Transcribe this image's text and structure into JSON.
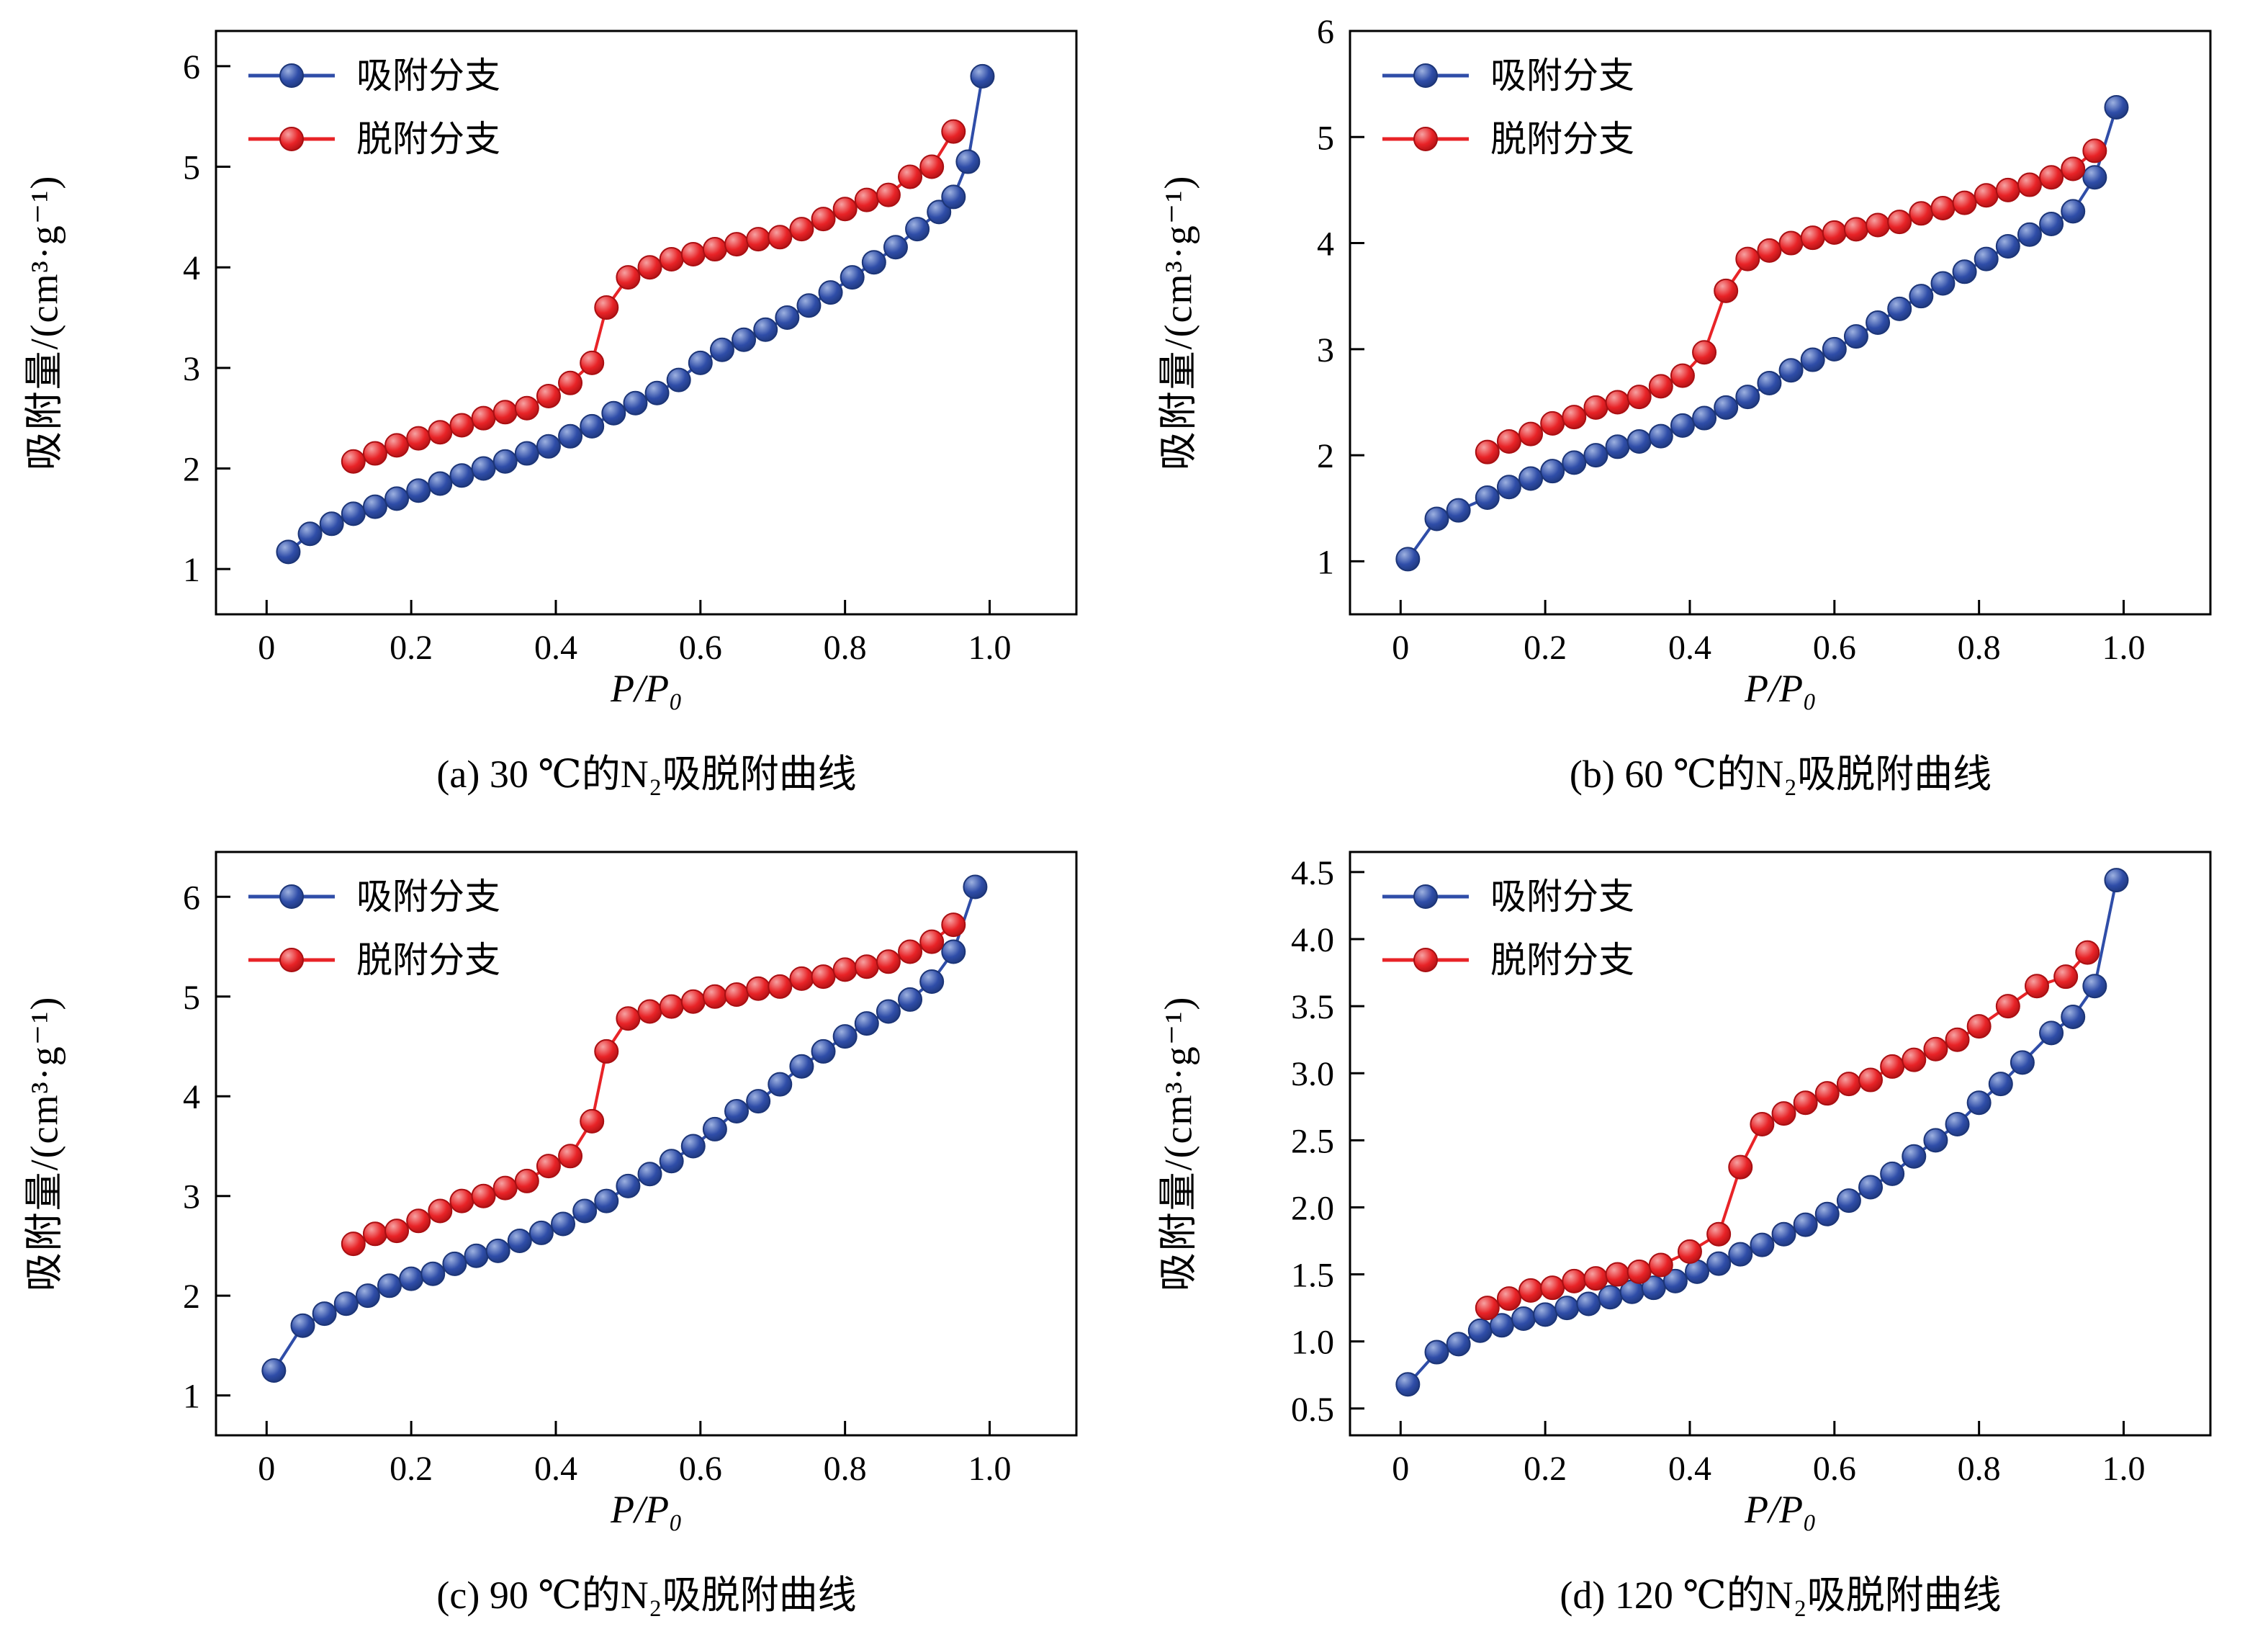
{
  "figure": {
    "accent_blue": "#2f4da8",
    "accent_red": "#e82327"
  },
  "chart_data": [
    {
      "type": "scatter",
      "title": "(a) 30 ℃的N₂吸脱附曲线",
      "xlabel": "P/P₀",
      "ylabel": "吸附量/(cm³·g⁻¹)",
      "xlim": [
        -0.07,
        1.12
      ],
      "ylim": [
        0.55,
        6.35
      ],
      "xticks": [
        0,
        0.2,
        0.4,
        0.6,
        0.8,
        1.0
      ],
      "xtick_labels": [
        "0",
        "0.2",
        "0.4",
        "0.6",
        "0.8",
        "1.0"
      ],
      "yticks": [
        1,
        2,
        3,
        4,
        5,
        6
      ],
      "ytick_labels": [
        "1",
        "2",
        "3",
        "4",
        "5",
        "6"
      ],
      "legend_position": "top-left",
      "grid": false,
      "series": [
        {
          "name": "吸附分支",
          "color": "#2f4da8",
          "color_light": "#9db1e0",
          "color_dark": "#1c3577",
          "x": [
            0.03,
            0.06,
            0.09,
            0.12,
            0.15,
            0.18,
            0.21,
            0.24,
            0.27,
            0.3,
            0.33,
            0.36,
            0.39,
            0.42,
            0.45,
            0.48,
            0.51,
            0.54,
            0.57,
            0.6,
            0.63,
            0.66,
            0.69,
            0.72,
            0.75,
            0.78,
            0.81,
            0.84,
            0.87,
            0.9,
            0.93,
            0.95,
            0.97,
            0.99
          ],
          "y": [
            1.17,
            1.35,
            1.45,
            1.55,
            1.62,
            1.7,
            1.78,
            1.85,
            1.93,
            2.0,
            2.07,
            2.15,
            2.22,
            2.32,
            2.42,
            2.55,
            2.65,
            2.75,
            2.88,
            3.05,
            3.18,
            3.28,
            3.38,
            3.5,
            3.62,
            3.75,
            3.9,
            4.05,
            4.2,
            4.38,
            4.55,
            4.7,
            5.05,
            5.9
          ]
        },
        {
          "name": "脱附分支",
          "color": "#e82327",
          "color_light": "#f6a2a2",
          "color_dark": "#a90f12",
          "x": [
            0.12,
            0.15,
            0.18,
            0.21,
            0.24,
            0.27,
            0.3,
            0.33,
            0.36,
            0.39,
            0.42,
            0.45,
            0.47,
            0.5,
            0.53,
            0.56,
            0.59,
            0.62,
            0.65,
            0.68,
            0.71,
            0.74,
            0.77,
            0.8,
            0.83,
            0.86,
            0.89,
            0.92,
            0.95
          ],
          "y": [
            2.07,
            2.15,
            2.23,
            2.3,
            2.36,
            2.43,
            2.5,
            2.56,
            2.6,
            2.72,
            2.85,
            3.05,
            3.6,
            3.9,
            4.0,
            4.08,
            4.13,
            4.18,
            4.23,
            4.28,
            4.3,
            4.38,
            4.48,
            4.58,
            4.67,
            4.72,
            4.9,
            5.0,
            5.35
          ]
        }
      ]
    },
    {
      "type": "scatter",
      "title": "(b) 60 ℃的N₂吸脱附曲线",
      "xlabel": "P/P₀",
      "ylabel": "吸附量/(cm³·g⁻¹)",
      "xlim": [
        -0.07,
        1.12
      ],
      "ylim": [
        0.5,
        6.0
      ],
      "xticks": [
        0,
        0.2,
        0.4,
        0.6,
        0.8,
        1.0
      ],
      "xtick_labels": [
        "0",
        "0.2",
        "0.4",
        "0.6",
        "0.8",
        "1.0"
      ],
      "yticks": [
        1,
        2,
        3,
        4,
        5,
        6
      ],
      "ytick_labels": [
        "1",
        "2",
        "3",
        "4",
        "5",
        "6"
      ],
      "legend_position": "top-left",
      "grid": false,
      "series": [
        {
          "name": "吸附分支",
          "color": "#2f4da8",
          "color_light": "#9db1e0",
          "color_dark": "#1c3577",
          "x": [
            0.01,
            0.05,
            0.08,
            0.12,
            0.15,
            0.18,
            0.21,
            0.24,
            0.27,
            0.3,
            0.33,
            0.36,
            0.39,
            0.42,
            0.45,
            0.48,
            0.51,
            0.54,
            0.57,
            0.6,
            0.63,
            0.66,
            0.69,
            0.72,
            0.75,
            0.78,
            0.81,
            0.84,
            0.87,
            0.9,
            0.93,
            0.96,
            0.99
          ],
          "y": [
            1.02,
            1.4,
            1.48,
            1.6,
            1.7,
            1.78,
            1.85,
            1.93,
            2.0,
            2.08,
            2.13,
            2.18,
            2.28,
            2.35,
            2.45,
            2.55,
            2.68,
            2.8,
            2.9,
            3.0,
            3.12,
            3.25,
            3.38,
            3.5,
            3.62,
            3.73,
            3.85,
            3.97,
            4.08,
            4.18,
            4.3,
            4.62,
            5.28
          ]
        },
        {
          "name": "脱附分支",
          "color": "#e82327",
          "color_light": "#f6a2a2",
          "color_dark": "#a90f12",
          "x": [
            0.12,
            0.15,
            0.18,
            0.21,
            0.24,
            0.27,
            0.3,
            0.33,
            0.36,
            0.39,
            0.42,
            0.45,
            0.48,
            0.51,
            0.54,
            0.57,
            0.6,
            0.63,
            0.66,
            0.69,
            0.72,
            0.75,
            0.78,
            0.81,
            0.84,
            0.87,
            0.9,
            0.93,
            0.96
          ],
          "y": [
            2.03,
            2.13,
            2.2,
            2.3,
            2.36,
            2.45,
            2.5,
            2.55,
            2.65,
            2.75,
            2.97,
            3.55,
            3.85,
            3.93,
            4.0,
            4.05,
            4.1,
            4.13,
            4.17,
            4.2,
            4.28,
            4.33,
            4.38,
            4.45,
            4.5,
            4.55,
            4.62,
            4.7,
            4.87
          ]
        }
      ]
    },
    {
      "type": "scatter",
      "title": "(c) 90 ℃的N₂吸脱附曲线",
      "xlabel": "P/P₀",
      "ylabel": "吸附量/(cm³·g⁻¹)",
      "xlim": [
        -0.07,
        1.12
      ],
      "ylim": [
        0.6,
        6.45
      ],
      "xticks": [
        0,
        0.2,
        0.4,
        0.6,
        0.8,
        1.0
      ],
      "xtick_labels": [
        "0",
        "0.2",
        "0.4",
        "0.6",
        "0.8",
        "1.0"
      ],
      "yticks": [
        1,
        2,
        3,
        4,
        5,
        6
      ],
      "ytick_labels": [
        "1",
        "2",
        "3",
        "4",
        "5",
        "6"
      ],
      "legend_position": "top-left",
      "grid": false,
      "series": [
        {
          "name": "吸附分支",
          "color": "#2f4da8",
          "color_light": "#9db1e0",
          "color_dark": "#1c3577",
          "x": [
            0.01,
            0.05,
            0.08,
            0.11,
            0.14,
            0.17,
            0.2,
            0.23,
            0.26,
            0.29,
            0.32,
            0.35,
            0.38,
            0.41,
            0.44,
            0.47,
            0.5,
            0.53,
            0.56,
            0.59,
            0.62,
            0.65,
            0.68,
            0.71,
            0.74,
            0.77,
            0.8,
            0.83,
            0.86,
            0.89,
            0.92,
            0.95,
            0.98
          ],
          "y": [
            1.25,
            1.7,
            1.82,
            1.92,
            2.0,
            2.1,
            2.17,
            2.22,
            2.32,
            2.4,
            2.45,
            2.55,
            2.63,
            2.72,
            2.85,
            2.95,
            3.1,
            3.22,
            3.35,
            3.5,
            3.67,
            3.85,
            3.95,
            4.12,
            4.3,
            4.45,
            4.6,
            4.73,
            4.85,
            4.97,
            5.15,
            5.45,
            6.1
          ]
        },
        {
          "name": "脱附分支",
          "color": "#e82327",
          "color_light": "#f6a2a2",
          "color_dark": "#a90f12",
          "x": [
            0.12,
            0.15,
            0.18,
            0.21,
            0.24,
            0.27,
            0.3,
            0.33,
            0.36,
            0.39,
            0.42,
            0.45,
            0.47,
            0.5,
            0.53,
            0.56,
            0.59,
            0.62,
            0.65,
            0.68,
            0.71,
            0.74,
            0.77,
            0.8,
            0.83,
            0.86,
            0.89,
            0.92,
            0.95
          ],
          "y": [
            2.52,
            2.62,
            2.65,
            2.75,
            2.85,
            2.95,
            3.0,
            3.08,
            3.15,
            3.3,
            3.4,
            3.75,
            4.45,
            4.78,
            4.85,
            4.9,
            4.95,
            5.0,
            5.02,
            5.08,
            5.1,
            5.18,
            5.2,
            5.27,
            5.3,
            5.35,
            5.45,
            5.55,
            5.72
          ]
        }
      ]
    },
    {
      "type": "scatter",
      "title": "(d) 120 ℃的N₂吸脱附曲线",
      "xlabel": "P/P₀",
      "ylabel": "吸附量/(cm³·g⁻¹)",
      "xlim": [
        -0.07,
        1.12
      ],
      "ylim": [
        0.3,
        4.65
      ],
      "xticks": [
        0,
        0.2,
        0.4,
        0.6,
        0.8,
        1.0
      ],
      "xtick_labels": [
        "0",
        "0.2",
        "0.4",
        "0.6",
        "0.8",
        "1.0"
      ],
      "yticks": [
        0.5,
        1.0,
        1.5,
        2.0,
        2.5,
        3.0,
        3.5,
        4.0,
        4.5
      ],
      "ytick_labels": [
        "0.5",
        "1.0",
        "1.5",
        "2.0",
        "2.5",
        "3.0",
        "3.5",
        "4.0",
        "4.5"
      ],
      "legend_position": "top-left",
      "grid": false,
      "series": [
        {
          "name": "吸附分支",
          "color": "#2f4da8",
          "color_light": "#9db1e0",
          "color_dark": "#1c3577",
          "x": [
            0.01,
            0.05,
            0.08,
            0.11,
            0.14,
            0.17,
            0.2,
            0.23,
            0.26,
            0.29,
            0.32,
            0.35,
            0.38,
            0.41,
            0.44,
            0.47,
            0.5,
            0.53,
            0.56,
            0.59,
            0.62,
            0.65,
            0.68,
            0.71,
            0.74,
            0.77,
            0.8,
            0.83,
            0.86,
            0.9,
            0.93,
            0.96,
            0.99
          ],
          "y": [
            0.68,
            0.92,
            0.98,
            1.08,
            1.12,
            1.17,
            1.2,
            1.25,
            1.28,
            1.33,
            1.37,
            1.4,
            1.45,
            1.52,
            1.58,
            1.65,
            1.72,
            1.8,
            1.87,
            1.95,
            2.05,
            2.15,
            2.25,
            2.38,
            2.5,
            2.62,
            2.78,
            2.92,
            3.08,
            3.3,
            3.42,
            3.65,
            4.44
          ]
        },
        {
          "name": "脱附分支",
          "color": "#e82327",
          "color_light": "#f6a2a2",
          "color_dark": "#a90f12",
          "x": [
            0.12,
            0.15,
            0.18,
            0.21,
            0.24,
            0.27,
            0.3,
            0.33,
            0.36,
            0.4,
            0.44,
            0.47,
            0.5,
            0.53,
            0.56,
            0.59,
            0.62,
            0.65,
            0.68,
            0.71,
            0.74,
            0.77,
            0.8,
            0.84,
            0.88,
            0.92,
            0.95
          ],
          "y": [
            1.25,
            1.32,
            1.38,
            1.4,
            1.45,
            1.47,
            1.5,
            1.52,
            1.57,
            1.67,
            1.8,
            2.3,
            2.62,
            2.7,
            2.78,
            2.85,
            2.92,
            2.95,
            3.05,
            3.1,
            3.18,
            3.25,
            3.35,
            3.5,
            3.65,
            3.72,
            3.9
          ]
        }
      ]
    }
  ]
}
